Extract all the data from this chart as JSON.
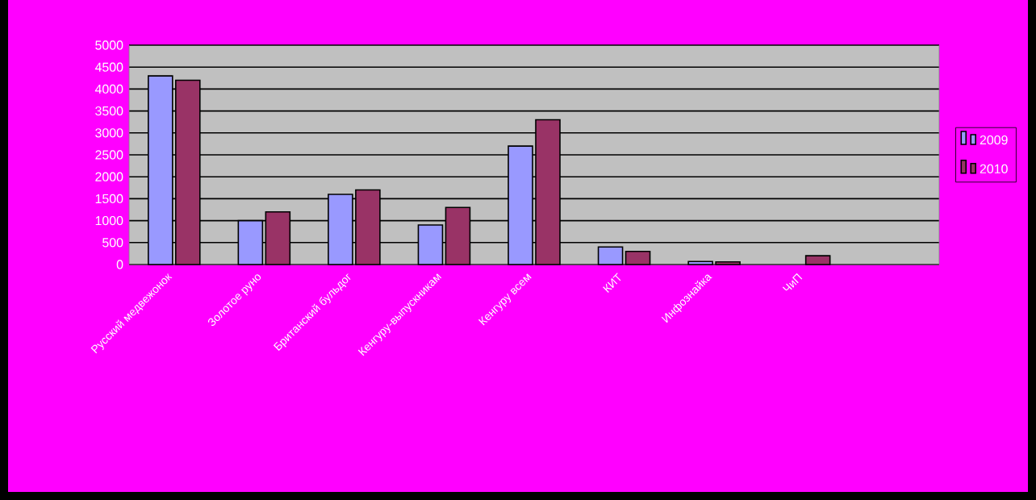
{
  "chart_data": {
    "type": "bar",
    "categories": [
      "Русский медвежонок",
      "Золотое руно",
      "Британский бульдог",
      "Кенгуру-выпускникам",
      "Кенгуру всем",
      "КИТ",
      "Инфознайка",
      "ЧиП",
      null
    ],
    "series": [
      {
        "name": "2009",
        "color": "#9999ff",
        "values": [
          4300,
          1000,
          1600,
          900,
          2700,
          400,
          70,
          null,
          null
        ]
      },
      {
        "name": "2010",
        "color": "#993366",
        "values": [
          4200,
          1200,
          1700,
          1300,
          3300,
          300,
          60,
          200,
          null
        ]
      }
    ],
    "ylim": [
      0,
      5000
    ],
    "yticks": [
      0,
      500,
      1000,
      1500,
      2000,
      2500,
      3000,
      3500,
      4000,
      4500,
      5000
    ],
    "grid": "y",
    "legend": "right"
  }
}
